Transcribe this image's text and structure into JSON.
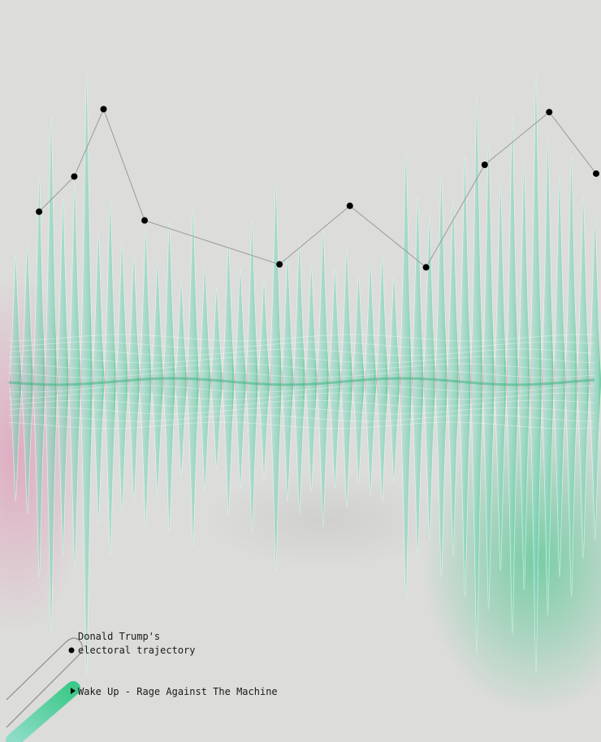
{
  "chart_data": {
    "type": "area",
    "title": "",
    "xlabel": "",
    "ylabel": "",
    "grid": false,
    "legend_position": "bottom-left",
    "legend": {
      "trajectory_label_line1": "Donald Trump's",
      "trajectory_label_line2": "electoral trajectory",
      "song_label": "Wake Up - Rage Against The Machine"
    },
    "colors": {
      "background": "#dcdcda",
      "pink": "#e27aa8",
      "teal": "#8fdcc8",
      "mint": "#58cfa3",
      "green": "#27c07a",
      "trajectory_line": "#9a9a9a",
      "trajectory_point": "#000000"
    },
    "trajectory_points": [
      {
        "x": 0.05,
        "y": 0.58
      },
      {
        "x": 0.11,
        "y": 0.7
      },
      {
        "x": 0.16,
        "y": 0.93
      },
      {
        "x": 0.23,
        "y": 0.55
      },
      {
        "x": 0.46,
        "y": 0.4
      },
      {
        "x": 0.58,
        "y": 0.6
      },
      {
        "x": 0.71,
        "y": 0.39
      },
      {
        "x": 0.81,
        "y": 0.74
      },
      {
        "x": 0.92,
        "y": 0.92
      },
      {
        "x": 1.0,
        "y": 0.71
      }
    ],
    "waveform_peaks": [
      0.38,
      0.42,
      0.62,
      0.8,
      0.55,
      0.6,
      0.93,
      0.45,
      0.55,
      0.42,
      0.38,
      0.46,
      0.36,
      0.48,
      0.3,
      0.52,
      0.35,
      0.28,
      0.42,
      0.34,
      0.48,
      0.3,
      0.6,
      0.38,
      0.42,
      0.35,
      0.46,
      0.34,
      0.4,
      0.32,
      0.36,
      0.38,
      0.32,
      0.7,
      0.56,
      0.5,
      0.62,
      0.55,
      0.68,
      0.86,
      0.72,
      0.6,
      0.8,
      0.66,
      0.92,
      0.74,
      0.62,
      0.68,
      0.56,
      0.5
    ]
  }
}
